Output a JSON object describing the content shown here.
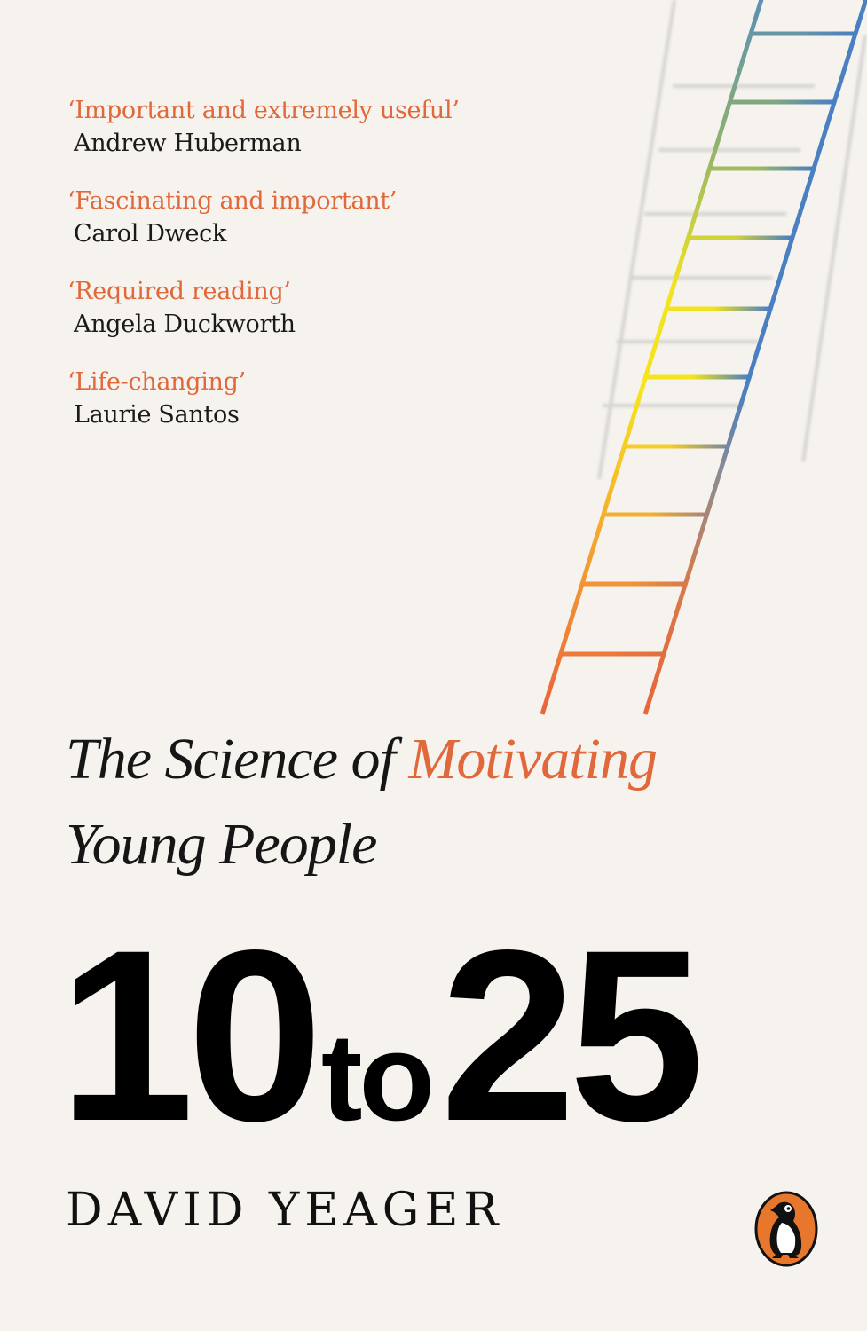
{
  "cover": {
    "quotes": [
      {
        "quote": "‘Important and extremely useful’",
        "author": "Andrew Huberman"
      },
      {
        "quote": "‘Fascinating and important’",
        "author": "Carol Dweck"
      },
      {
        "quote": "‘Required reading’",
        "author": "Angela Duckworth"
      },
      {
        "quote": "‘Life-changing’",
        "author": "Laurie Santos"
      }
    ],
    "subtitle_part1": "The Science of ",
    "subtitle_accent": "Motivating",
    "subtitle_part2": "Young People",
    "title_num1": "10",
    "title_to": "to",
    "title_num2": "25",
    "author": "DAVID YEAGER",
    "publisher_logo": "penguin-logo",
    "colors": {
      "background": "#f6f3ee",
      "accent_orange": "#e0683a",
      "ladder_yellow": "#f4e21c",
      "ladder_blue": "#4a7fc1",
      "text": "#111111"
    }
  }
}
